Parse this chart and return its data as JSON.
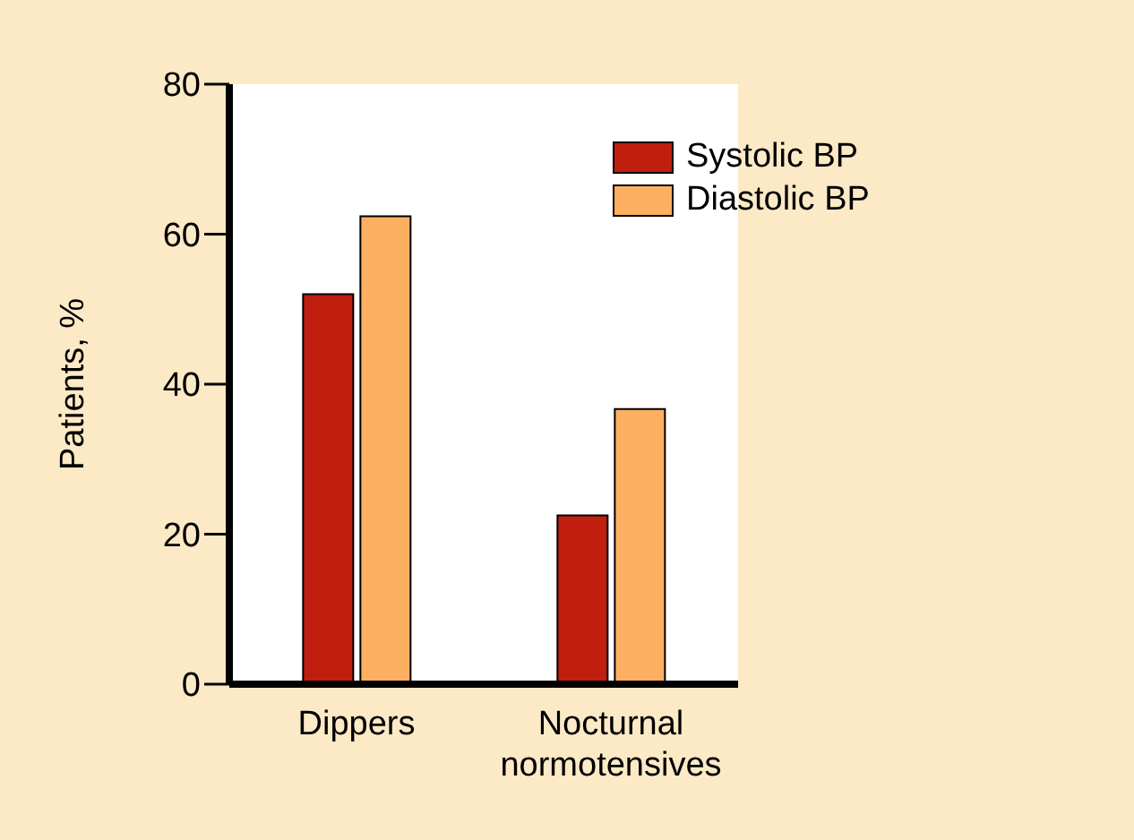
{
  "chart_data": {
    "type": "bar",
    "ylabel": "Patients, %",
    "categories": [
      "Dippers",
      "Nocturnal normotensives"
    ],
    "series": [
      {
        "name": "Systolic BP",
        "color": "#c01f10",
        "values": [
          52,
          22.5
        ]
      },
      {
        "name": "Diastolic BP",
        "color": "#fdb062",
        "values": [
          62.4,
          36.7
        ]
      }
    ],
    "ylim": [
      0,
      80
    ],
    "yticks": [
      0,
      20,
      40,
      60,
      80
    ],
    "grid": false,
    "legend": "top right"
  }
}
